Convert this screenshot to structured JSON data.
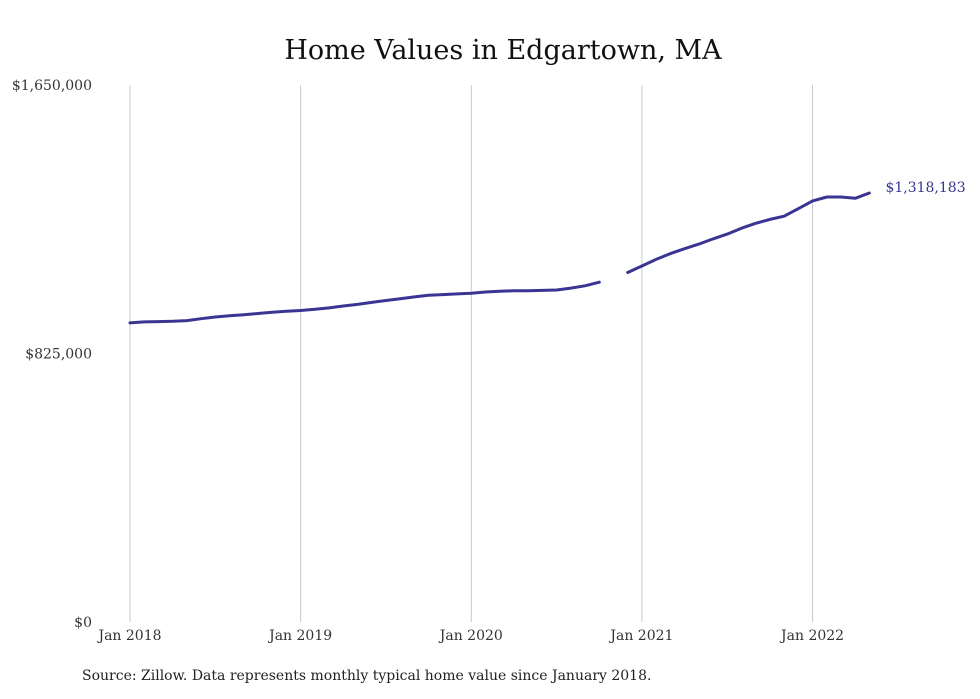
{
  "chart_data": {
    "type": "line",
    "title": "Home Values in Edgartown, MA",
    "xlabel": "",
    "ylabel": "",
    "ylim": [
      0,
      1650000
    ],
    "y_ticks": [
      "$0",
      "$825,000",
      "$1,650,000"
    ],
    "y_tick_values": [
      0,
      825000,
      1650000
    ],
    "x_ticks": [
      "Jan 2018",
      "Jan 2019",
      "Jan 2020",
      "Jan 2021",
      "Jan 2022"
    ],
    "x_tick_values": [
      "2018-01",
      "2019-01",
      "2020-01",
      "2021-01",
      "2022-01"
    ],
    "grid": "vertical",
    "line_color": "#3a3593",
    "series": [
      {
        "segments": [
          {
            "x": [
              "2018-01",
              "2018-02",
              "2018-03",
              "2018-04",
              "2018-05",
              "2018-06",
              "2018-07",
              "2018-08",
              "2018-09",
              "2018-10",
              "2018-11",
              "2018-12",
              "2019-01",
              "2019-02",
              "2019-03",
              "2019-04",
              "2019-05",
              "2019-06",
              "2019-07",
              "2019-08",
              "2019-09",
              "2019-10",
              "2019-11",
              "2019-12",
              "2020-01",
              "2020-02",
              "2020-03",
              "2020-04",
              "2020-05",
              "2020-06",
              "2020-07",
              "2020-08",
              "2020-09",
              "2020-10"
            ],
            "y": [
              919000,
              922000,
              923000,
              924000,
              926000,
              932000,
              937000,
              941000,
              944000,
              948000,
              952000,
              955000,
              957000,
              961000,
              965000,
              971000,
              976000,
              982000,
              988000,
              993000,
              999000,
              1004000,
              1006000,
              1008000,
              1010000,
              1014000,
              1016000,
              1018000,
              1018000,
              1019000,
              1020000,
              1026000,
              1033000,
              1044000
            ]
          },
          {
            "x": [
              "2020-12",
              "2021-01",
              "2021-02",
              "2021-03",
              "2021-04",
              "2021-05",
              "2021-06",
              "2021-07",
              "2021-08",
              "2021-09",
              "2021-10",
              "2021-11",
              "2021-12",
              "2022-01",
              "2022-02",
              "2022-03",
              "2022-04",
              "2022-05"
            ],
            "y": [
              1074000,
              1094000,
              1114000,
              1132000,
              1147000,
              1161000,
              1177000,
              1192000,
              1210000,
              1225000,
              1237000,
              1247000,
              1270000,
              1294000,
              1306000,
              1306000,
              1302000,
              1318183
            ]
          }
        ]
      }
    ],
    "end_label": "$1,318,183",
    "source": "Source: Zillow. Data represents monthly typical home value since January 2018."
  }
}
